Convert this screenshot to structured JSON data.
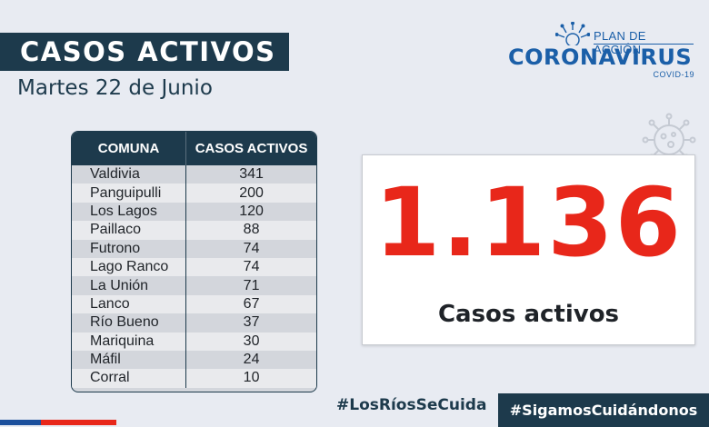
{
  "header": {
    "title": "CASOS ACTIVOS",
    "date": "Martes 22 de Junio"
  },
  "logo": {
    "plan": "PLAN DE ACCIÓN",
    "name": "CORONAVIRUS",
    "sub": "COVID-19",
    "emblem_icon": "sun-emblem-icon"
  },
  "table": {
    "headers": [
      "COMUNA",
      "CASOS ACTIVOS"
    ],
    "rows": [
      {
        "comuna": "Valdivia",
        "casos": "341"
      },
      {
        "comuna": "Panguipulli",
        "casos": "200"
      },
      {
        "comuna": "Los Lagos",
        "casos": "120"
      },
      {
        "comuna": "Paillaco",
        "casos": "88"
      },
      {
        "comuna": "Futrono",
        "casos": "74"
      },
      {
        "comuna": "Lago Ranco",
        "casos": "74"
      },
      {
        "comuna": "La Unión",
        "casos": "71"
      },
      {
        "comuna": "Lanco",
        "casos": "67"
      },
      {
        "comuna": "Río Bueno",
        "casos": "37"
      },
      {
        "comuna": "Mariquina",
        "casos": "30"
      },
      {
        "comuna": "Máfil",
        "casos": "24"
      },
      {
        "comuna": "Corral",
        "casos": "10"
      }
    ]
  },
  "summary": {
    "total": "1.136",
    "label": "Casos activos"
  },
  "footer": {
    "hashtag_left": "#LosRíosSeCuida",
    "hashtag_right": "#SigamosCuidándonos"
  },
  "colors": {
    "navy": "#1d3a4c",
    "accent_red": "#e8271a",
    "logo_blue": "#1b5fa8",
    "background": "#e8ebf2"
  }
}
